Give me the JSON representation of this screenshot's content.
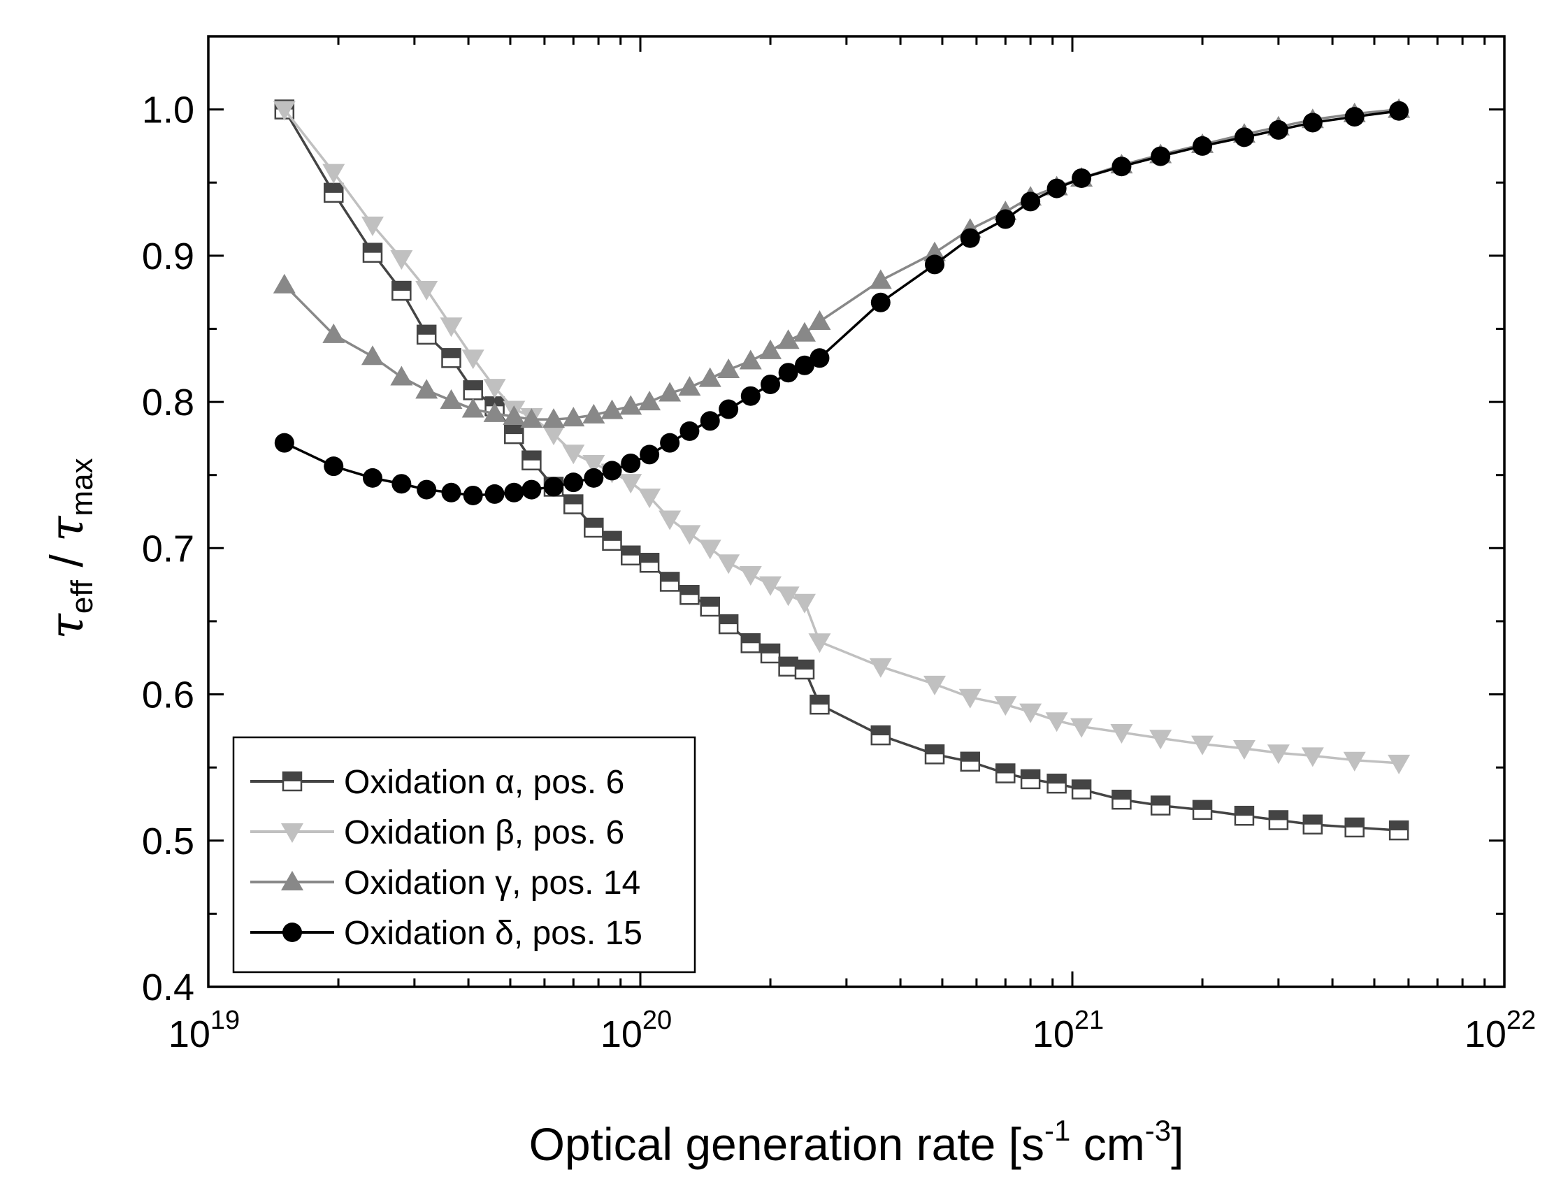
{
  "chart_data": {
    "type": "scatter",
    "title": "",
    "xlabel": "Optical generation rate [s",
    "xlabel_parts": {
      "base": "Optical generation rate [s",
      "exp1": "-1",
      "mid": " cm",
      "exp2": "-3",
      "end": "]"
    },
    "ylabel_parts": {
      "tau1": "τ",
      "sub1": "eff",
      "slash": " / ",
      "tau2": "τ",
      "sub2": "max"
    },
    "x_scale": "log",
    "xlim": [
      1e+19,
      1e+22
    ],
    "ylim": [
      0.4,
      1.05
    ],
    "x_ticks": [
      {
        "mantissa": "10",
        "exp": "19"
      },
      {
        "mantissa": "10",
        "exp": "20"
      },
      {
        "mantissa": "10",
        "exp": "21"
      },
      {
        "mantissa": "10",
        "exp": "22"
      }
    ],
    "y_ticks": [
      "0.4",
      "0.5",
      "0.6",
      "0.7",
      "0.8",
      "0.9",
      "1.0"
    ],
    "grid": false,
    "legend_position": "bottom-left",
    "series": [
      {
        "name": "Oxidation α, pos. 6",
        "marker": "half-filled-square",
        "color": "#444444",
        "x": [
          1.5e+19,
          1.95e+19,
          2.4e+19,
          2.8e+19,
          3.2e+19,
          3.65e+19,
          4.1e+19,
          4.6e+19,
          5.1e+19,
          5.6e+19,
          6.3e+19,
          7e+19,
          7.8e+19,
          8.6e+19,
          9.5e+19,
          1.05e+20,
          1.17e+20,
          1.3e+20,
          1.45e+20,
          1.6e+20,
          1.8e+20,
          2e+20,
          2.2e+20,
          2.4e+20,
          2.6e+20,
          3.6e+20,
          4.8e+20,
          5.8e+20,
          7e+20,
          8e+20,
          9.2e+20,
          1.05e+21,
          1.3e+21,
          1.6e+21,
          2e+21,
          2.5e+21,
          3e+21,
          3.6e+21,
          4.5e+21,
          5.7e+21
        ],
        "y": [
          1.0,
          0.943,
          0.902,
          0.876,
          0.846,
          0.83,
          0.808,
          0.797,
          0.778,
          0.76,
          0.742,
          0.73,
          0.714,
          0.705,
          0.695,
          0.69,
          0.677,
          0.668,
          0.66,
          0.648,
          0.635,
          0.628,
          0.619,
          0.617,
          0.593,
          0.572,
          0.559,
          0.554,
          0.546,
          0.542,
          0.539,
          0.535,
          0.528,
          0.524,
          0.521,
          0.517,
          0.514,
          0.511,
          0.509,
          0.507
        ]
      },
      {
        "name": "Oxidation β, pos. 6",
        "marker": "triangle-down",
        "color": "#c0c0c0",
        "x": [
          1.5e+19,
          1.95e+19,
          2.4e+19,
          2.8e+19,
          3.2e+19,
          3.65e+19,
          4.1e+19,
          4.6e+19,
          5.1e+19,
          5.6e+19,
          6.3e+19,
          7e+19,
          7.8e+19,
          8.6e+19,
          9.5e+19,
          1.05e+20,
          1.17e+20,
          1.3e+20,
          1.45e+20,
          1.6e+20,
          1.8e+20,
          2e+20,
          2.2e+20,
          2.4e+20,
          2.6e+20,
          3.6e+20,
          4.8e+20,
          5.8e+20,
          7e+20,
          8e+20,
          9.2e+20,
          1.05e+21,
          1.3e+21,
          1.6e+21,
          2e+21,
          2.5e+21,
          3e+21,
          3.6e+21,
          4.5e+21,
          5.7e+21
        ],
        "y": [
          1.0,
          0.957,
          0.921,
          0.898,
          0.877,
          0.852,
          0.83,
          0.81,
          0.795,
          0.79,
          0.778,
          0.765,
          0.758,
          0.752,
          0.745,
          0.735,
          0.72,
          0.71,
          0.7,
          0.69,
          0.682,
          0.675,
          0.668,
          0.663,
          0.636,
          0.619,
          0.607,
          0.598,
          0.593,
          0.588,
          0.582,
          0.578,
          0.574,
          0.57,
          0.566,
          0.563,
          0.56,
          0.558,
          0.555,
          0.553
        ]
      },
      {
        "name": "Oxidation γ, pos. 14",
        "marker": "triangle-up",
        "color": "#888888",
        "x": [
          1.5e+19,
          1.95e+19,
          2.4e+19,
          2.8e+19,
          3.2e+19,
          3.65e+19,
          4.1e+19,
          4.6e+19,
          5.1e+19,
          5.6e+19,
          6.3e+19,
          7e+19,
          7.8e+19,
          8.6e+19,
          9.5e+19,
          1.05e+20,
          1.17e+20,
          1.3e+20,
          1.45e+20,
          1.6e+20,
          1.8e+20,
          2e+20,
          2.2e+20,
          2.4e+20,
          2.6e+20,
          3.6e+20,
          4.8e+20,
          5.8e+20,
          7e+20,
          8e+20,
          9.2e+20,
          1.05e+21,
          1.3e+21,
          1.6e+21,
          2e+21,
          2.5e+21,
          3e+21,
          3.6e+21,
          4.5e+21,
          5.7e+21
        ],
        "y": [
          0.88,
          0.846,
          0.831,
          0.817,
          0.808,
          0.801,
          0.795,
          0.792,
          0.79,
          0.788,
          0.788,
          0.789,
          0.791,
          0.794,
          0.797,
          0.8,
          0.806,
          0.81,
          0.816,
          0.822,
          0.828,
          0.835,
          0.842,
          0.847,
          0.855,
          0.883,
          0.902,
          0.918,
          0.93,
          0.94,
          0.947,
          0.953,
          0.962,
          0.969,
          0.976,
          0.983,
          0.988,
          0.993,
          0.997,
          1.0
        ]
      },
      {
        "name": "Oxidation δ, pos. 15",
        "marker": "circle",
        "color": "#000000",
        "x": [
          1.5e+19,
          1.95e+19,
          2.4e+19,
          2.8e+19,
          3.2e+19,
          3.65e+19,
          4.1e+19,
          4.6e+19,
          5.1e+19,
          5.6e+19,
          6.3e+19,
          7e+19,
          7.8e+19,
          8.6e+19,
          9.5e+19,
          1.05e+20,
          1.17e+20,
          1.3e+20,
          1.45e+20,
          1.6e+20,
          1.8e+20,
          2e+20,
          2.2e+20,
          2.4e+20,
          2.6e+20,
          3.6e+20,
          4.8e+20,
          5.8e+20,
          7e+20,
          8e+20,
          9.2e+20,
          1.05e+21,
          1.3e+21,
          1.6e+21,
          2e+21,
          2.5e+21,
          3e+21,
          3.6e+21,
          4.5e+21,
          5.7e+21
        ],
        "y": [
          0.772,
          0.756,
          0.748,
          0.744,
          0.74,
          0.738,
          0.736,
          0.737,
          0.738,
          0.74,
          0.742,
          0.745,
          0.748,
          0.753,
          0.758,
          0.764,
          0.772,
          0.78,
          0.787,
          0.795,
          0.804,
          0.812,
          0.82,
          0.825,
          0.83,
          0.868,
          0.894,
          0.912,
          0.925,
          0.937,
          0.946,
          0.953,
          0.961,
          0.968,
          0.975,
          0.981,
          0.986,
          0.991,
          0.995,
          0.999
        ]
      }
    ]
  }
}
